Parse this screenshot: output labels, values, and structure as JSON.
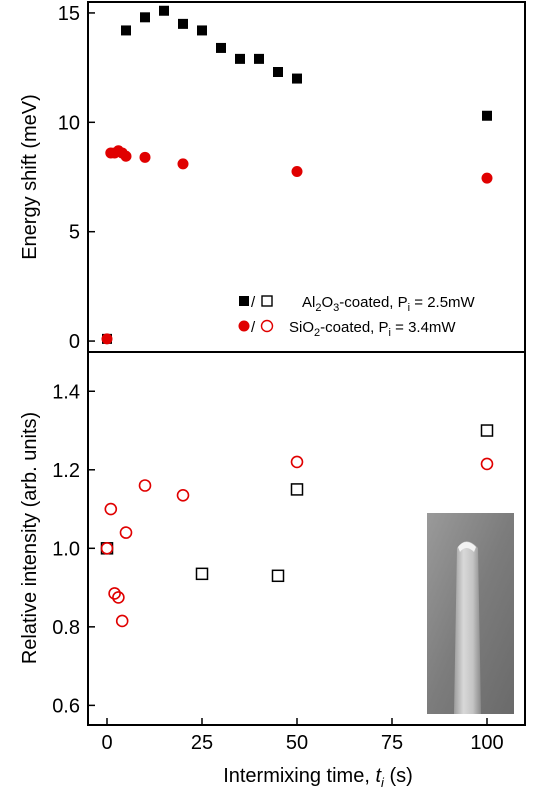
{
  "chart_data": [
    {
      "type": "scatter",
      "panel": "top",
      "xlim": [
        -5,
        110
      ],
      "ylim": [
        -0.5,
        15.5
      ],
      "yticks": [
        0,
        5,
        10,
        15
      ],
      "ylabel": "Energy shift (meV)",
      "series": [
        {
          "name": "Al2O3-coated, Pi = 2.5mW",
          "marker": "filled-square",
          "color": "#000000",
          "x": [
            0,
            5,
            10,
            15,
            20,
            25,
            30,
            35,
            40,
            45,
            50,
            100
          ],
          "y": [
            0.1,
            14.2,
            14.8,
            15.1,
            14.5,
            14.2,
            13.4,
            12.9,
            12.9,
            12.3,
            12.0,
            10.3
          ]
        },
        {
          "name": "SiO2-coated, Pi = 3.4mW",
          "marker": "filled-circle",
          "color": "#e00000",
          "x": [
            0,
            1,
            2,
            3,
            4,
            5,
            10,
            20,
            50,
            100
          ],
          "y": [
            0.1,
            8.6,
            8.6,
            8.7,
            8.6,
            8.45,
            8.4,
            8.1,
            7.75,
            7.45
          ]
        }
      ],
      "legend": {
        "position": "bottom-right",
        "entries": [
          {
            "marker_pair": "filled-square/open-square",
            "separator": "/",
            "prefix": "Al",
            "sub1": "2",
            "mid": "O",
            "sub2": "3",
            "suffix": "-coated, P",
            "psub": "i",
            "value": " = 2.5mW"
          },
          {
            "marker_pair": "filled-circle/open-circle",
            "separator": "/",
            "prefix": "SiO",
            "sub1": "2",
            "mid": "",
            "sub2": "",
            "suffix": "-coated, P",
            "psub": "i",
            "value": " = 3.4mW"
          }
        ]
      }
    },
    {
      "type": "scatter",
      "panel": "bottom",
      "xlim": [
        -5,
        110
      ],
      "ylim": [
        0.55,
        1.5
      ],
      "xticks": [
        0,
        25,
        50,
        75,
        100
      ],
      "yticks": [
        0.6,
        0.8,
        1.0,
        1.2,
        1.4
      ],
      "ylabel": "Relative intensity (arb. units)",
      "xlabel_text": "Intermixing time, ",
      "xlabel_italic": "t",
      "xlabel_sub": "i",
      "xlabel_unit": " (s)",
      "series": [
        {
          "name": "Al2O3-coated",
          "marker": "open-square",
          "color": "#000000",
          "x": [
            0,
            25,
            45,
            50,
            100
          ],
          "y": [
            1.0,
            0.935,
            0.93,
            1.15,
            1.3
          ]
        },
        {
          "name": "SiO2-coated",
          "marker": "open-circle",
          "color": "#e00000",
          "x": [
            0,
            1,
            2,
            3,
            4,
            5,
            10,
            20,
            50,
            100
          ],
          "y": [
            1.0,
            1.1,
            0.885,
            0.875,
            0.815,
            1.04,
            1.16,
            1.135,
            1.22,
            1.215
          ]
        }
      ],
      "inset": {
        "type": "micrograph",
        "description_free": true
      }
    }
  ]
}
